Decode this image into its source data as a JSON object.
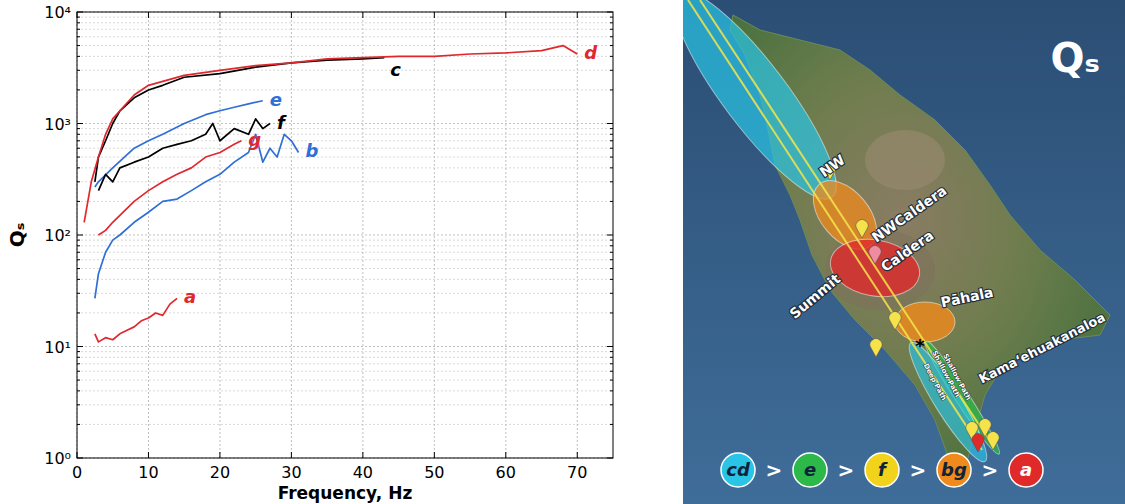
{
  "chart_data": {
    "type": "line",
    "xlabel": "Frequency, Hz",
    "ylabel": "Qₛ",
    "xlim": [
      0,
      75
    ],
    "xticks": [
      0,
      10,
      20,
      30,
      40,
      50,
      60,
      70
    ],
    "ylim": [
      1,
      10000
    ],
    "yticks": [
      {
        "value": 1,
        "label": "10⁰"
      },
      {
        "value": 10,
        "label": "10¹"
      },
      {
        "value": 100,
        "label": "10²"
      },
      {
        "value": 1000,
        "label": "10³"
      },
      {
        "value": 10000,
        "label": "10⁴"
      }
    ],
    "log": "y",
    "grid": true,
    "series": [
      {
        "name": "a",
        "color": "#e0282e",
        "x": [
          2.5,
          3,
          4,
          5,
          6,
          7,
          8,
          9,
          10,
          11,
          12,
          13,
          14
        ],
        "values": [
          13,
          11,
          12,
          11.5,
          13,
          14,
          15,
          17,
          18,
          20,
          19,
          24,
          27
        ]
      },
      {
        "name": "b",
        "color": "#2f6fd6",
        "x": [
          2.5,
          3,
          4,
          5,
          6,
          8,
          10,
          12,
          14,
          16,
          18,
          20,
          22,
          24,
          25,
          26,
          27,
          28,
          29,
          30,
          31
        ],
        "values": [
          27,
          45,
          70,
          90,
          100,
          130,
          160,
          200,
          210,
          250,
          300,
          350,
          450,
          550,
          800,
          450,
          600,
          500,
          800,
          700,
          550
        ]
      },
      {
        "name": "c",
        "color": "#000000",
        "x": [
          2.5,
          3,
          4,
          5,
          6,
          8,
          10,
          12,
          15,
          20,
          25,
          30,
          35,
          40,
          43
        ],
        "values": [
          300,
          500,
          700,
          1000,
          1300,
          1700,
          2000,
          2200,
          2600,
          2800,
          3200,
          3500,
          3700,
          3800,
          3900
        ]
      },
      {
        "name": "d",
        "color": "#e0282e",
        "x": [
          1,
          2,
          3,
          4,
          5,
          6,
          8,
          10,
          15,
          20,
          25,
          30,
          35,
          40,
          45,
          50,
          55,
          60,
          65,
          68,
          70
        ],
        "values": [
          130,
          300,
          500,
          800,
          1100,
          1300,
          1800,
          2200,
          2700,
          3000,
          3300,
          3500,
          3800,
          3900,
          4000,
          4000,
          4200,
          4300,
          4500,
          5000,
          4200
        ]
      },
      {
        "name": "e",
        "color": "#2f6fd6",
        "x": [
          2.5,
          3,
          5,
          8,
          10,
          12,
          15,
          18,
          20,
          22,
          24,
          26
        ],
        "values": [
          270,
          300,
          400,
          600,
          700,
          800,
          1000,
          1200,
          1300,
          1400,
          1500,
          1600
        ]
      },
      {
        "name": "f",
        "color": "#000000",
        "x": [
          3,
          4,
          5,
          6,
          8,
          10,
          12,
          14,
          16,
          18,
          19,
          20,
          22,
          24,
          25,
          26,
          27
        ],
        "values": [
          250,
          350,
          300,
          400,
          450,
          500,
          600,
          650,
          700,
          800,
          1000,
          700,
          900,
          800,
          1100,
          900,
          1000
        ]
      },
      {
        "name": "g",
        "color": "#e0282e",
        "x": [
          3,
          4,
          5,
          6,
          8,
          10,
          12,
          14,
          16,
          18,
          20,
          22,
          23
        ],
        "values": [
          100,
          110,
          130,
          150,
          200,
          250,
          300,
          350,
          400,
          500,
          550,
          650,
          700
        ]
      }
    ]
  },
  "map": {
    "title": "Qₛ",
    "places": [
      "NW",
      "NWCaldera",
      "Summit",
      "Caldera",
      "Pāhala",
      "Kamaʻehuakanaloa",
      "Shallow Path",
      "Shallow Path",
      "Deep Path",
      "*"
    ],
    "ranking": [
      {
        "label": "cd",
        "color": "#29c4e6"
      },
      {
        "label": "e",
        "color": "#2db84a"
      },
      {
        "label": "f",
        "color": "#f2d31b"
      },
      {
        "label": "bg",
        "color": "#f08a1c"
      },
      {
        "label": "a",
        "color": "#e02a2a"
      }
    ],
    "separator": ">"
  }
}
